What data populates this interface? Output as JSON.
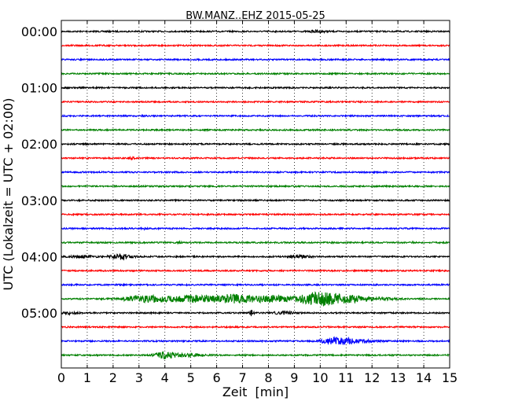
{
  "chart_data": {
    "type": "line",
    "title": "BW.MANZ..EHZ 2015-05-25",
    "xlabel": "Zeit  [min]",
    "ylabel": "UTC (Lokalzeit = UTC + 02:00)",
    "xlim": [
      0,
      15
    ],
    "x_ticks": [
      "0",
      "1",
      "2",
      "3",
      "4",
      "5",
      "6",
      "7",
      "8",
      "9",
      "10",
      "11",
      "12",
      "13",
      "14",
      "15"
    ],
    "y_ticks": [
      "00:00",
      "01:00",
      "02:00",
      "03:00",
      "04:00",
      "05:00"
    ],
    "grid": "vertical dotted, every minute",
    "trace_interval_min": 15,
    "color_cycle": [
      "#000000",
      "#ff0000",
      "#0000ff",
      "#008000"
    ],
    "traces": [
      {
        "start": "00:00",
        "events": [
          {
            "t": 9.9,
            "amp": 1.2,
            "dur": 0.5
          }
        ]
      },
      {
        "start": "00:15",
        "events": []
      },
      {
        "start": "00:30",
        "events": []
      },
      {
        "start": "00:45",
        "events": []
      },
      {
        "start": "01:00",
        "events": []
      },
      {
        "start": "01:15",
        "events": []
      },
      {
        "start": "01:30",
        "events": []
      },
      {
        "start": "01:45",
        "events": []
      },
      {
        "start": "02:00",
        "events": []
      },
      {
        "start": "02:15",
        "events": [
          {
            "t": 2.7,
            "amp": 1.2,
            "dur": 0.2
          }
        ]
      },
      {
        "start": "02:30",
        "events": []
      },
      {
        "start": "02:45",
        "events": []
      },
      {
        "start": "03:00",
        "events": []
      },
      {
        "start": "03:15",
        "events": []
      },
      {
        "start": "03:30",
        "events": [
          {
            "t": 3.2,
            "amp": 0.8,
            "dur": 0.2
          }
        ]
      },
      {
        "start": "03:45",
        "events": [
          {
            "t": 4.5,
            "amp": 0.8,
            "dur": 0.2
          },
          {
            "t": 13.6,
            "amp": 0.8,
            "dur": 0.2
          }
        ]
      },
      {
        "start": "04:00",
        "events": [
          {
            "t": 0.8,
            "amp": 1.5,
            "dur": 0.8
          },
          {
            "t": 2.3,
            "amp": 3,
            "dur": 0.7
          },
          {
            "t": 9.2,
            "amp": 2,
            "dur": 0.6
          }
        ]
      },
      {
        "start": "04:15",
        "events": []
      },
      {
        "start": "04:30",
        "events": []
      },
      {
        "start": "04:45",
        "events": [
          {
            "t": 3.3,
            "amp": 4,
            "dur": 1.6
          },
          {
            "t": 5.0,
            "amp": 4.5,
            "dur": 1.4
          },
          {
            "t": 6.6,
            "amp": 5,
            "dur": 1.4
          },
          {
            "t": 8.1,
            "amp": 3.5,
            "dur": 1.6
          },
          {
            "t": 9.8,
            "amp": 6,
            "dur": 1.2
          },
          {
            "t": 10.6,
            "amp": 4.5,
            "dur": 1.4
          },
          {
            "t": 11.8,
            "amp": 2.5,
            "dur": 1.5
          }
        ]
      },
      {
        "start": "05:00",
        "events": [
          {
            "t": 0.3,
            "amp": 1.2,
            "dur": 0.5
          },
          {
            "t": 7.35,
            "amp": 3.5,
            "dur": 0.12
          },
          {
            "t": 8.6,
            "amp": 1.8,
            "dur": 0.6
          }
        ]
      },
      {
        "start": "05:15",
        "events": []
      },
      {
        "start": "05:30",
        "events": [
          {
            "t": 10.6,
            "amp": 5,
            "dur": 0.8
          },
          {
            "t": 11.3,
            "amp": 2,
            "dur": 1.4
          }
        ]
      },
      {
        "start": "05:45",
        "events": [
          {
            "t": 4.0,
            "amp": 4,
            "dur": 0.6
          },
          {
            "t": 4.8,
            "amp": 1.5,
            "dur": 1.2
          }
        ]
      }
    ]
  }
}
